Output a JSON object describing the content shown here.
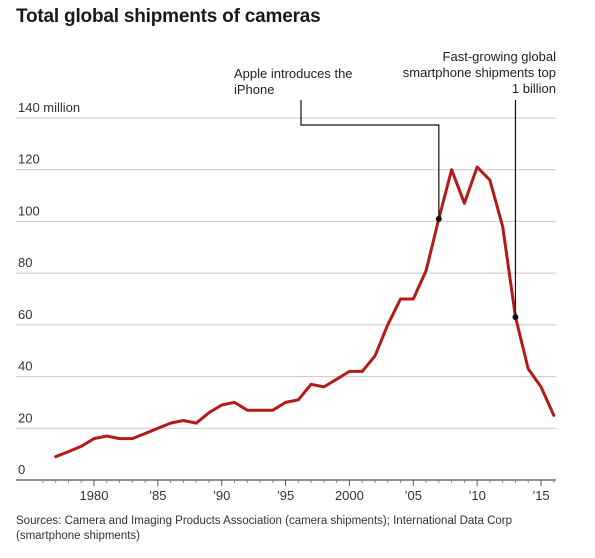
{
  "chart_data": {
    "type": "line",
    "title": "Total global shipments of cameras",
    "ylabel_top": "140 million",
    "ylim": [
      0,
      140
    ],
    "yticks": [
      0,
      20,
      40,
      60,
      80,
      100,
      120,
      140
    ],
    "ytick_labels": [
      "0",
      "20",
      "40",
      "60",
      "80",
      "100",
      "120",
      "140 million"
    ],
    "xlim": [
      1976,
      2016.5
    ],
    "xticks": [
      1980,
      1985,
      1990,
      1995,
      2000,
      2005,
      2010,
      2015
    ],
    "xtick_labels": [
      "1980",
      "’85",
      "’90",
      "’95",
      "2000",
      "’05",
      "’10",
      "’15"
    ],
    "grid": true,
    "series": [
      {
        "color": "#b31b1b",
        "x": [
          1977,
          1978,
          1979,
          1980,
          1981,
          1982,
          1983,
          1984,
          1985,
          1986,
          1987,
          1988,
          1989,
          1990,
          1991,
          1992,
          1993,
          1994,
          1995,
          1996,
          1997,
          1998,
          1999,
          2000,
          2001,
          2002,
          2003,
          2004,
          2005,
          2006,
          2007,
          2008,
          2009,
          2010,
          2011,
          2012,
          2013,
          2014,
          2015,
          2016
        ],
        "values": [
          9,
          11,
          13,
          16,
          17,
          16,
          16,
          18,
          20,
          22,
          23,
          22,
          26,
          29,
          30,
          27,
          27,
          27,
          30,
          31,
          37,
          36,
          39,
          42,
          42,
          48,
          60,
          70,
          70,
          81,
          101,
          120,
          107,
          121,
          116,
          98,
          63,
          43,
          36,
          25
        ]
      }
    ],
    "annotations": [
      {
        "label": "Apple introduces the iPhone",
        "lines": [
          "Apple introduces the",
          "iPhone"
        ],
        "x": 2007,
        "y": 101
      },
      {
        "label": "Fast-growing global smartphone shipments top 1 billion",
        "lines": [
          "Fast-growing global",
          "smartphone shipments top",
          "1 billion"
        ],
        "x": 2013,
        "y": 63
      }
    ]
  },
  "source": "Sources: Camera and Imaging Products Association (camera shipments); International Data Corp (smartphone shipments)"
}
